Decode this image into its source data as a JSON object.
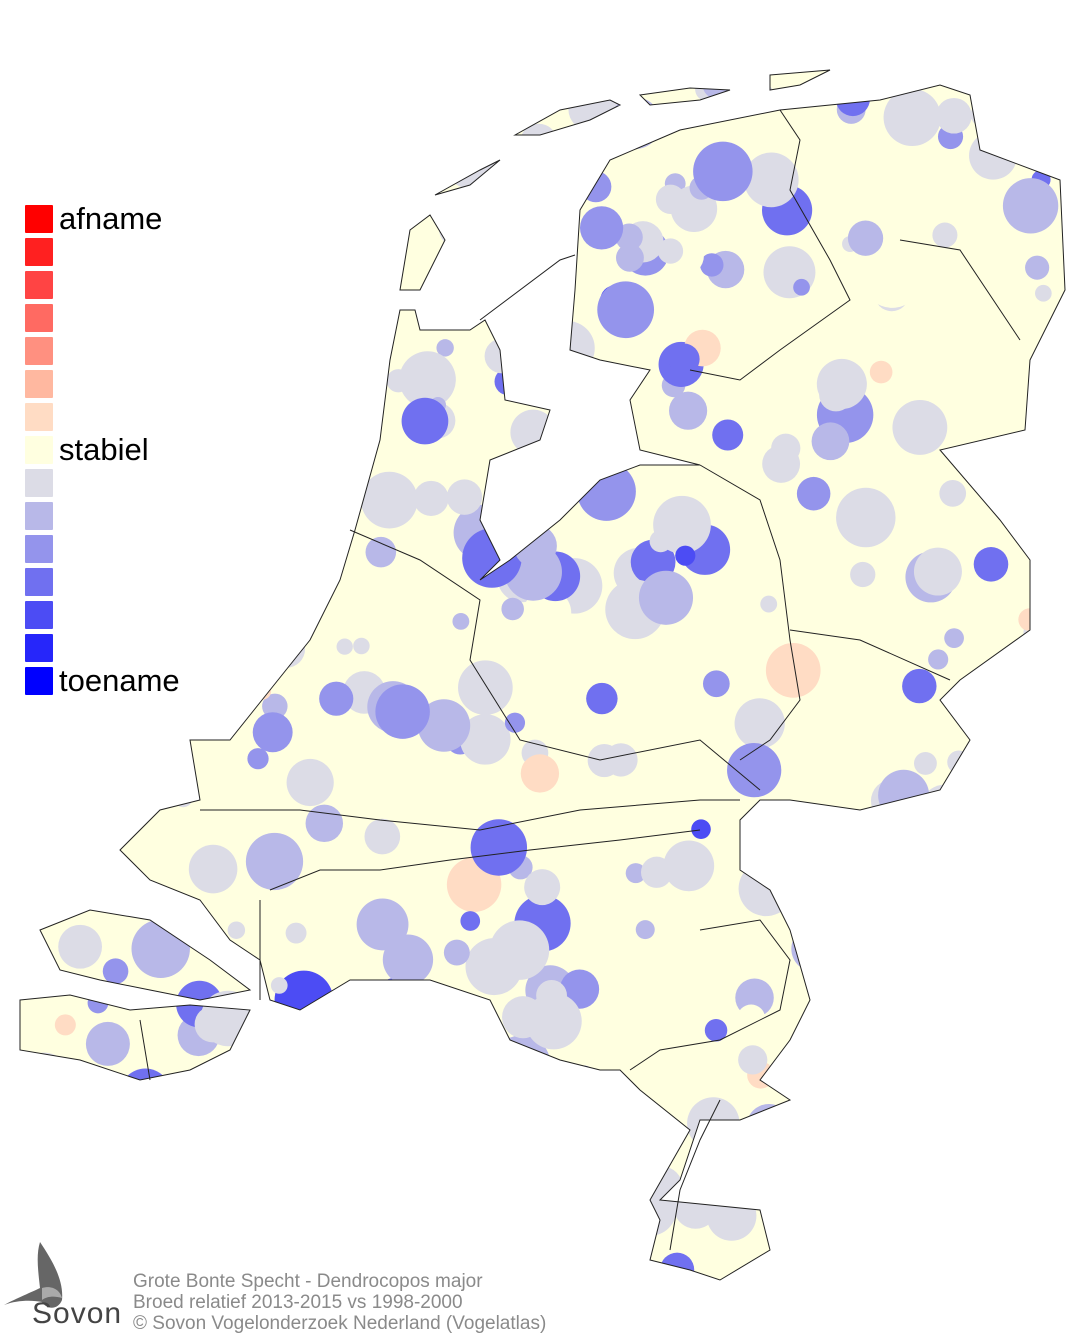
{
  "legend": {
    "labels": {
      "top": "afname",
      "middle": "stabiel",
      "bottom": "toename"
    },
    "colors": [
      "#ff0000",
      "#ff2020",
      "#ff4444",
      "#ff6a62",
      "#ff9080",
      "#ffb8a0",
      "#ffdcc4",
      "#ffffe0",
      "#dcdce6",
      "#b8b8e8",
      "#9494ec",
      "#7070f0",
      "#4c4cf4",
      "#2626fa",
      "#0000ff"
    ]
  },
  "footer": {
    "line1": "Grote Bonte Specht - Dendrocopos major",
    "line2": "Broed relatief 2013-2015 vs 1998-2000",
    "line3": "© Sovon Vogelonderzoek Nederland (Vogelatlas)"
  },
  "logo": {
    "text": "Sovon",
    "icon": "swallow-icon"
  }
}
